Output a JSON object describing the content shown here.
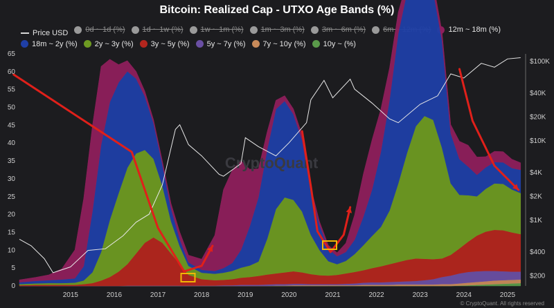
{
  "chart_data": {
    "type": "area",
    "title": "Bitcoin: Realized Cap - UTXO Age Bands (%)",
    "footer": "CryptoQuant. All rights reserved",
    "watermark": "CryptoQuant",
    "x_ticks": [
      "2015",
      "2016",
      "2017",
      "2018",
      "2019",
      "2020",
      "2021",
      "2022",
      "2023",
      "2024",
      "2025"
    ],
    "y_left_ticks": [
      "65",
      "60",
      "55",
      "50",
      "45",
      "40",
      "35",
      "30",
      "25",
      "20",
      "15",
      "10",
      "5",
      "0"
    ],
    "y_right_ticks": [
      "$100K",
      "$40K",
      "$20K",
      "$10K",
      "$4K",
      "$2K",
      "$1K",
      "$400",
      "$200"
    ],
    "ylim": [
      0,
      65
    ],
    "legend": [
      {
        "label": "Price USD",
        "color": "#d8d8d8",
        "enabled": true,
        "kind": "line"
      },
      {
        "label": "0d ~ 1d (%)",
        "color": "#9a9a9a",
        "enabled": false
      },
      {
        "label": "1d ~ 1w (%)",
        "color": "#9a9a9a",
        "enabled": false
      },
      {
        "label": "1w ~ 1m (%)",
        "color": "#9a9a9a",
        "enabled": false
      },
      {
        "label": "1m ~ 3m (%)",
        "color": "#9a9a9a",
        "enabled": false
      },
      {
        "label": "3m ~ 6m (%)",
        "color": "#9a9a9a",
        "enabled": false
      },
      {
        "label": "6m ~ 12m (%)",
        "color": "#9a9a9a",
        "enabled": false
      },
      {
        "label": "12m ~ 18m (%)",
        "color": "#8e1f5c",
        "enabled": true
      },
      {
        "label": "18m ~ 2y (%)",
        "color": "#1f3fa6",
        "enabled": true
      },
      {
        "label": "2y ~ 3y (%)",
        "color": "#6e9a22",
        "enabled": true
      },
      {
        "label": "3y ~ 5y (%)",
        "color": "#b3261e",
        "enabled": true
      },
      {
        "label": "5y ~ 7y (%)",
        "color": "#6a4fa3",
        "enabled": true
      },
      {
        "label": "7y ~ 10y (%)",
        "color": "#c88a5a",
        "enabled": true
      },
      {
        "label": "10y ~ (%)",
        "color": "#5a9a4a",
        "enabled": true
      }
    ],
    "x": [
      2014.33,
      2014.7,
      2015.0,
      2015.3,
      2015.6,
      2015.8,
      2016.0,
      2016.2,
      2016.4,
      2016.6,
      2016.8,
      2017.0,
      2017.2,
      2017.4,
      2017.6,
      2017.8,
      2018.0,
      2018.2,
      2018.5,
      2018.8,
      2019.0,
      2019.2,
      2019.4,
      2019.6,
      2019.8,
      2020.0,
      2020.2,
      2020.4,
      2020.6,
      2020.8,
      2021.0,
      2021.2,
      2021.4,
      2021.6,
      2021.8,
      2022.0,
      2022.2,
      2022.4,
      2022.6,
      2022.8,
      2023.0,
      2023.2,
      2023.4,
      2023.6,
      2023.8,
      2024.0,
      2024.2,
      2024.4,
      2024.6,
      2024.8,
      2025.0,
      2025.2,
      2025.4,
      2025.6,
      2025.8
    ],
    "series": [
      {
        "name": "10y ~ (%)",
        "color": "#5a9a4a",
        "values": [
          0,
          0,
          0,
          0,
          0,
          0,
          0,
          0,
          0,
          0,
          0,
          0,
          0,
          0,
          0,
          0,
          0,
          0,
          0,
          0,
          0,
          0,
          0,
          0,
          0,
          0,
          0,
          0,
          0,
          0,
          0,
          0,
          0,
          0,
          0,
          0,
          0,
          0,
          0,
          0,
          0,
          0,
          0,
          0,
          0,
          0,
          0,
          0.1,
          0.2,
          0.3,
          0.4,
          0.5,
          0.6,
          0.7,
          0.8
        ]
      },
      {
        "name": "7y ~ 10y (%)",
        "color": "#c88a5a",
        "values": [
          0,
          0,
          0,
          0,
          0,
          0,
          0,
          0,
          0,
          0,
          0,
          0,
          0,
          0,
          0,
          0,
          0,
          0,
          0,
          0,
          0,
          0,
          0,
          0,
          0,
          0,
          0.1,
          0.1,
          0.2,
          0.2,
          0.2,
          0.2,
          0.2,
          0.2,
          0.2,
          0.2,
          0.3,
          0.3,
          0.3,
          0.3,
          0.4,
          0.4,
          0.4,
          0.4,
          0.4,
          0.5,
          0.5,
          0.6,
          0.7,
          0.8,
          0.9,
          1.0,
          1.0,
          1.0,
          1.0
        ]
      },
      {
        "name": "5y ~ 7y (%)",
        "color": "#6a4fa3",
        "values": [
          0,
          0,
          0,
          0,
          0,
          0,
          0,
          0,
          0,
          0,
          0.1,
          0.1,
          0.1,
          0.1,
          0.1,
          0.1,
          0.1,
          0.1,
          0.1,
          0.1,
          0.2,
          0.2,
          0.3,
          0.3,
          0.3,
          0.4,
          0.4,
          0.4,
          0.4,
          0.4,
          0.3,
          0.3,
          0.3,
          0.3,
          0.4,
          0.5,
          0.6,
          0.7,
          0.7,
          0.8,
          0.8,
          0.9,
          1.0,
          1.2,
          1.5,
          2.0,
          2.4,
          2.8,
          3.0,
          3.0,
          2.9,
          2.7,
          2.5,
          2.3,
          2.2
        ]
      },
      {
        "name": "3y ~ 5y (%)",
        "color": "#b3261e",
        "values": [
          0.2,
          0.3,
          0.3,
          0.3,
          0.3,
          0.5,
          0.8,
          1.5,
          2.5,
          4,
          6,
          9,
          12,
          13.5,
          12,
          9,
          6,
          3,
          1.8,
          1.5,
          1.5,
          1.7,
          2,
          2.2,
          2.5,
          2.8,
          3.0,
          3.3,
          3.5,
          3.2,
          2.8,
          2.5,
          2.4,
          2.6,
          2.9,
          3.2,
          3.5,
          4.0,
          4.5,
          5.0,
          5.5,
          6.0,
          6.3,
          6.0,
          5.6,
          5.2,
          5.8,
          7.0,
          8.5,
          10.0,
          11.0,
          11.5,
          11.5,
          11.0,
          10.5
        ]
      },
      {
        "name": "2y ~ 3y (%)",
        "color": "#6e9a22",
        "values": [
          0.3,
          0.4,
          0.5,
          0.5,
          0.6,
          1.0,
          3.0,
          8,
          16,
          22,
          27,
          28,
          26,
          22,
          16,
          9,
          5,
          2.5,
          1.8,
          1.8,
          2.0,
          2.3,
          2.8,
          3.2,
          4.0,
          10,
          18,
          21,
          20,
          17,
          11,
          7,
          4,
          3,
          3.5,
          5,
          7,
          9,
          11,
          15,
          22,
          30,
          37,
          40,
          39,
          31,
          20,
          15,
          13,
          11,
          12,
          13,
          13,
          12,
          11.5
        ]
      },
      {
        "name": "18m ~ 2y (%)",
        "color": "#1f3fa6",
        "values": [
          0.5,
          0.7,
          0.8,
          1.0,
          1.2,
          4,
          17,
          30,
          33,
          31,
          27,
          21,
          15,
          10,
          6,
          3.5,
          2,
          1,
          0.8,
          0.8,
          1.3,
          2.2,
          5,
          11,
          18,
          25,
          28,
          27,
          24,
          20,
          12,
          7,
          3.5,
          2.2,
          2.5,
          4,
          8,
          13,
          21,
          31,
          42,
          45,
          43,
          39,
          36,
          30,
          14,
          10,
          8,
          6,
          6,
          6,
          6,
          6,
          6.5
        ]
      },
      {
        "name": "12m ~ 18m (%)",
        "color": "#8e1f5c",
        "values": [
          0.7,
          1.0,
          1.5,
          3.0,
          8,
          19,
          24,
          22,
          12,
          5,
          3,
          2.0,
          1.5,
          1.0,
          1.0,
          1.5,
          2,
          2,
          3,
          10,
          22,
          26,
          25,
          16,
          8,
          5,
          2.5,
          1.5,
          1.5,
          1.5,
          1.2,
          1.0,
          1.0,
          1.0,
          2.5,
          7,
          12,
          14,
          12,
          9,
          6,
          3,
          3,
          2.5,
          2.5,
          2.5,
          2.5,
          5,
          6,
          5,
          3,
          3,
          3,
          2.5,
          2
        ]
      }
    ],
    "price_series": {
      "name": "Price USD",
      "x": [
        2014.33,
        2014.6,
        2014.9,
        2015.1,
        2015.5,
        2015.9,
        2016.3,
        2016.7,
        2017.0,
        2017.3,
        2017.6,
        2017.9,
        2018.0,
        2018.2,
        2018.5,
        2018.9,
        2019.0,
        2019.4,
        2019.5,
        2019.8,
        2020.2,
        2020.5,
        2020.9,
        2021.0,
        2021.3,
        2021.5,
        2021.9,
        2022.0,
        2022.4,
        2022.8,
        2023.0,
        2023.5,
        2023.9,
        2024.2,
        2024.5,
        2024.9,
        2025.2,
        2025.5,
        2025.8
      ],
      "values": [
        580,
        480,
        330,
        220,
        260,
        420,
        440,
        640,
        950,
        1200,
        2800,
        14000,
        16000,
        9000,
        6500,
        3800,
        3600,
        5200,
        11000,
        8500,
        6500,
        9500,
        17000,
        33000,
        58000,
        35000,
        60000,
        45000,
        30000,
        19000,
        17000,
        29000,
        37000,
        70000,
        62000,
        95000,
        85000,
        108000,
        112000
      ]
    }
  }
}
